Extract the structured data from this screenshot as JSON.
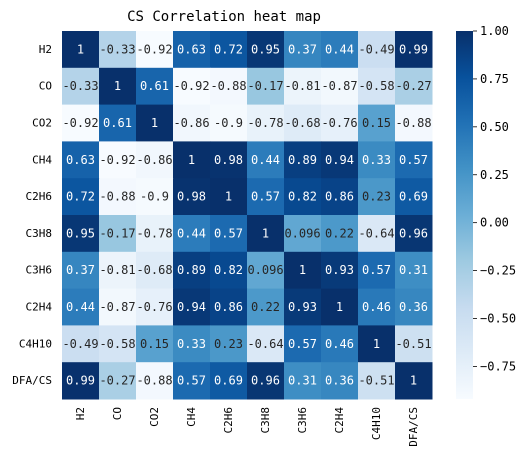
{
  "chart_data": {
    "type": "heatmap",
    "title": "CS Correlation heat map",
    "xlabel": "",
    "ylabel": "",
    "variables": [
      "H2",
      "CO",
      "CO2",
      "CH4",
      "C2H6",
      "C3H8",
      "C3H6",
      "C2H4",
      "C4H10",
      "DFA/CS"
    ],
    "matrix": [
      [
        1,
        -0.33,
        -0.92,
        0.63,
        0.72,
        0.95,
        0.37,
        0.44,
        -0.49,
        0.99
      ],
      [
        -0.33,
        1,
        0.61,
        -0.92,
        -0.88,
        -0.17,
        -0.81,
        -0.87,
        -0.58,
        -0.27
      ],
      [
        -0.92,
        0.61,
        1,
        -0.86,
        -0.9,
        -0.78,
        -0.68,
        -0.76,
        0.15,
        -0.88
      ],
      [
        0.63,
        -0.92,
        -0.86,
        1,
        0.98,
        0.44,
        0.89,
        0.94,
        0.33,
        0.57
      ],
      [
        0.72,
        -0.88,
        -0.9,
        0.98,
        1,
        0.57,
        0.82,
        0.86,
        0.23,
        0.69
      ],
      [
        0.95,
        -0.17,
        -0.78,
        0.44,
        0.57,
        1,
        0.096,
        0.22,
        -0.64,
        0.96
      ],
      [
        0.37,
        -0.81,
        -0.68,
        0.89,
        0.82,
        0.096,
        1,
        0.93,
        0.57,
        0.31
      ],
      [
        0.44,
        -0.87,
        -0.76,
        0.94,
        0.86,
        0.22,
        0.93,
        1,
        0.46,
        0.36
      ],
      [
        -0.49,
        -0.58,
        0.15,
        0.33,
        0.23,
        -0.64,
        0.57,
        0.46,
        1,
        -0.51
      ],
      [
        0.99,
        -0.27,
        -0.88,
        0.57,
        0.69,
        0.96,
        0.31,
        0.36,
        -0.51,
        1
      ]
    ],
    "cell_labels": [
      [
        "1",
        "-0.33",
        "-0.92",
        "0.63",
        "0.72",
        "0.95",
        "0.37",
        "0.44",
        "-0.49",
        "0.99"
      ],
      [
        "-0.33",
        "1",
        "0.61",
        "-0.92",
        "-0.88",
        "-0.17",
        "-0.81",
        "-0.87",
        "-0.58",
        "-0.27"
      ],
      [
        "-0.92",
        "0.61",
        "1",
        "-0.86",
        "-0.9",
        "-0.78",
        "-0.68",
        "-0.76",
        "0.15",
        "-0.88"
      ],
      [
        "0.63",
        "-0.92",
        "-0.86",
        "1",
        "0.98",
        "0.44",
        "0.89",
        "0.94",
        "0.33",
        "0.57"
      ],
      [
        "0.72",
        "-0.88",
        "-0.9",
        "0.98",
        "1",
        "0.57",
        "0.82",
        "0.86",
        "0.23",
        "0.69"
      ],
      [
        "0.95",
        "-0.17",
        "-0.78",
        "0.44",
        "0.57",
        "1",
        "0.096",
        "0.22",
        "-0.64",
        "0.96"
      ],
      [
        "0.37",
        "-0.81",
        "-0.68",
        "0.89",
        "0.82",
        "0.096",
        "1",
        "0.93",
        "0.57",
        "0.31"
      ],
      [
        "0.44",
        "-0.87",
        "-0.76",
        "0.94",
        "0.86",
        "0.22",
        "0.93",
        "1",
        "0.46",
        "0.36"
      ],
      [
        "-0.49",
        "-0.58",
        "0.15",
        "0.33",
        "0.23",
        "-0.64",
        "0.57",
        "0.46",
        "1",
        "-0.51"
      ],
      [
        "0.99",
        "-0.27",
        "-0.88",
        "0.57",
        "0.69",
        "0.96",
        "0.31",
        "0.36",
        "-0.51",
        "1"
      ]
    ],
    "colormap": "Blues",
    "color_range": [
      -0.92,
      1.0
    ],
    "colorbar": {
      "ticks": [
        1.0,
        0.75,
        0.5,
        0.25,
        0.0,
        -0.25,
        -0.5,
        -0.75
      ],
      "tick_labels": [
        "1.00",
        "0.75",
        "0.50",
        "0.25",
        "0.00",
        "−0.25",
        "−0.50",
        "−0.75"
      ],
      "placement": "right"
    },
    "x_tick_rotation": "vertical",
    "grid": false
  }
}
